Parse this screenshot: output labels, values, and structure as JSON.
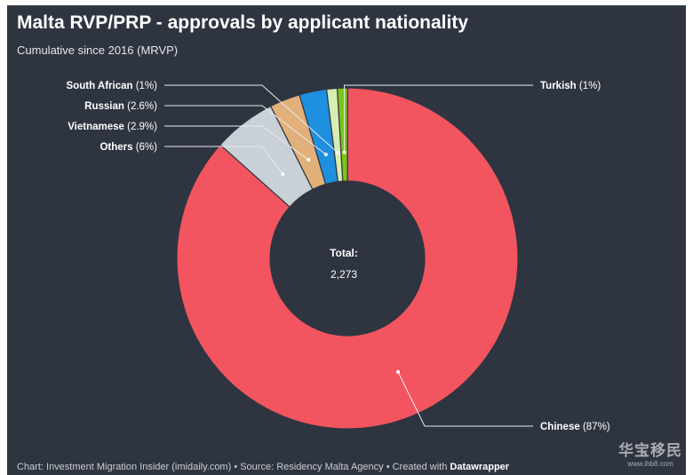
{
  "title": "Malta RVP/PRP - approvals by applicant nationality",
  "subtitle": "Cumulative since 2016 (MRVP)",
  "center": {
    "label": "Total:",
    "value": "2,273"
  },
  "footer": {
    "prefix": "Chart: Investment Migration Insider (imidaily.com) • Source: Residency Malta Agency • Created with ",
    "brand": "Datawrapper"
  },
  "watermark": {
    "text": "华宝移民",
    "url": "www.ihb8.com"
  },
  "colors": {
    "background": "#2f3540",
    "chinese": "#f2555f",
    "others": "#c9d0d6",
    "vietnamese": "#e2b07a",
    "russian": "#1f8fe0",
    "south_african": "#d6eeb2",
    "turkish": "#7cc417"
  },
  "chart_data": {
    "type": "pie",
    "donut": true,
    "title": "Malta RVP/PRP - approvals by applicant nationality",
    "subtitle": "Cumulative since 2016 (MRVP)",
    "total": 2273,
    "slices": [
      {
        "name": "Turkish",
        "value": 1,
        "label": "Turkish (1%)",
        "color": "#7cc417"
      },
      {
        "name": "Chinese",
        "value": 87,
        "label": "Chinese (87%)",
        "color": "#f2555f"
      },
      {
        "name": "Others",
        "value": 6,
        "label": "Others (6%)",
        "color": "#c9d0d6"
      },
      {
        "name": "Vietnamese",
        "value": 2.9,
        "label": "Vietnamese (2.9%)",
        "color": "#e2b07a"
      },
      {
        "name": "Russian",
        "value": 2.6,
        "label": "Russian (2.6%)",
        "color": "#1f8fe0"
      },
      {
        "name": "South African",
        "value": 1,
        "label": "South African (1%)",
        "color": "#d6eeb2"
      }
    ]
  }
}
